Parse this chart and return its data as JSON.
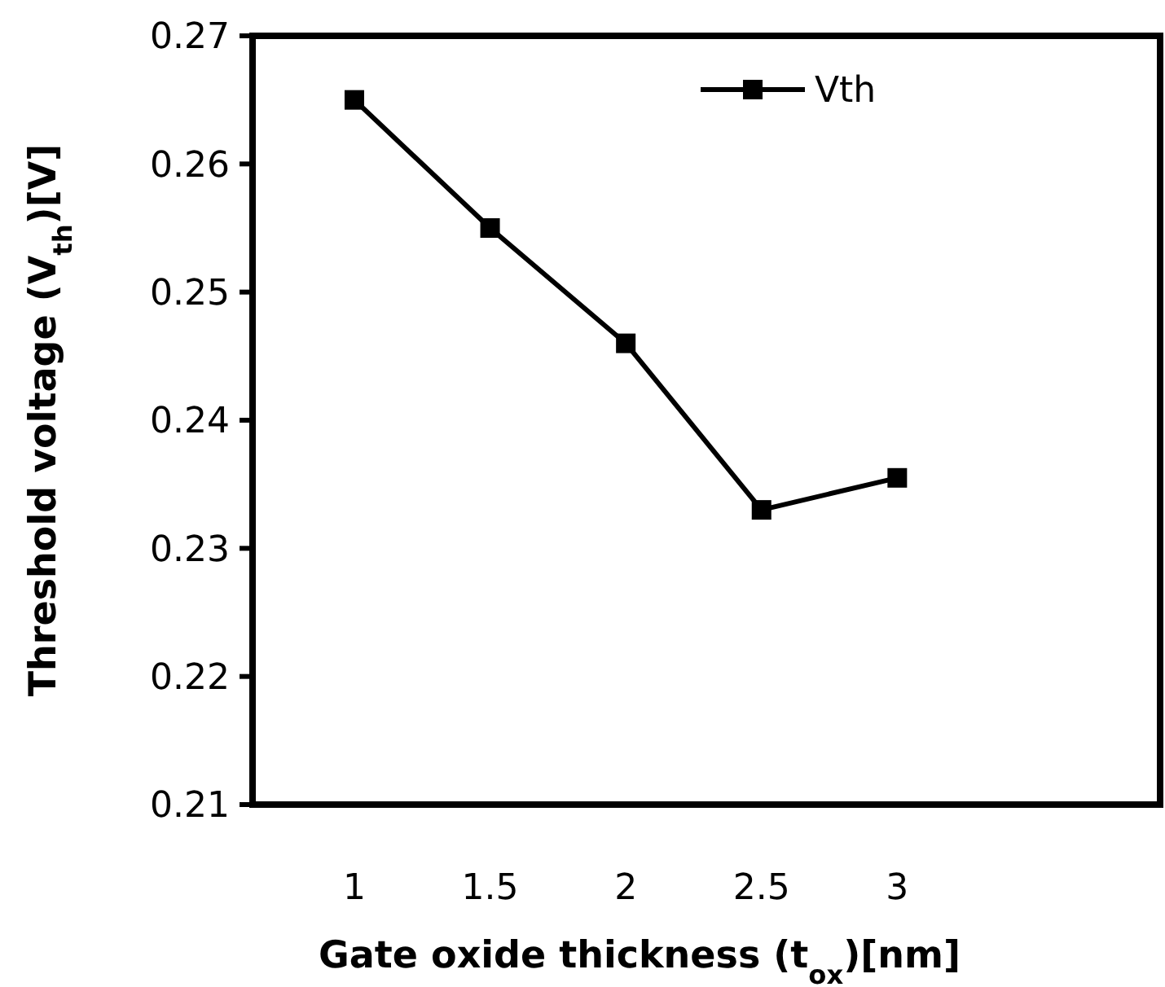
{
  "chart_data": {
    "type": "line",
    "xlabel": "Gate oxide thickness (t$_{ox}$)[nm]",
    "ylabel": "Threshold voltage (V$_{th}$)[V]",
    "categories": [
      "1",
      "1.5",
      "2",
      "2.5",
      "3"
    ],
    "series": [
      {
        "name": "Vth",
        "color": "#000000",
        "values": [
          0.265,
          0.255,
          0.246,
          0.233,
          0.2355
        ]
      }
    ],
    "ylim": [
      0.21,
      0.27
    ],
    "yticks": [
      0.21,
      0.22,
      0.23,
      0.24,
      0.25,
      0.26,
      0.27
    ],
    "grid": false,
    "legend": "top right",
    "marker": "square",
    "line_style": "solid"
  }
}
